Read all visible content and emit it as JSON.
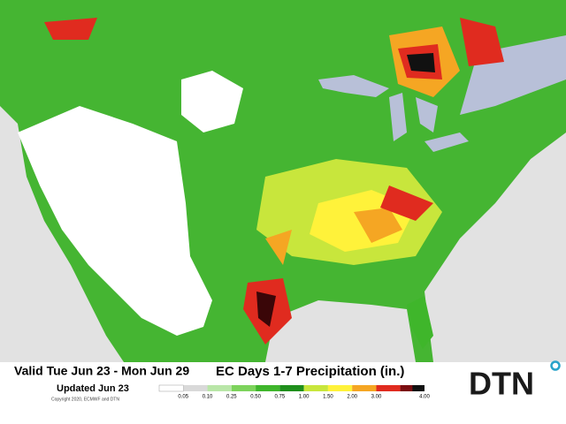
{
  "header": {
    "valid": "Valid Tue Jun 23 - Mon Jun 29",
    "updated": "Updated Jun 23",
    "copyright": "Copyright 2020, ECMWF and DTN",
    "title": "EC Days 1-7 Precipitation (in.)"
  },
  "legend": {
    "items": [
      {
        "label": "0.05",
        "color": "#d9d9d9"
      },
      {
        "label": "0.10",
        "color": "#b9e6a8"
      },
      {
        "label": "0.25",
        "color": "#7dd35c"
      },
      {
        "label": "0.50",
        "color": "#3fb62b"
      },
      {
        "label": "0.75",
        "color": "#1f8f1c"
      },
      {
        "label": "1.00",
        "color": "#c8e63c"
      },
      {
        "label": "1.50",
        "color": "#fff23a"
      },
      {
        "label": "2.00",
        "color": "#f5a623"
      },
      {
        "label": "3.00",
        "color": "#e02b1f"
      },
      {
        "label": "4.00",
        "color": "#7a0d10"
      }
    ],
    "last_color": "#111111"
  },
  "logo": {
    "text": "DTN"
  }
}
